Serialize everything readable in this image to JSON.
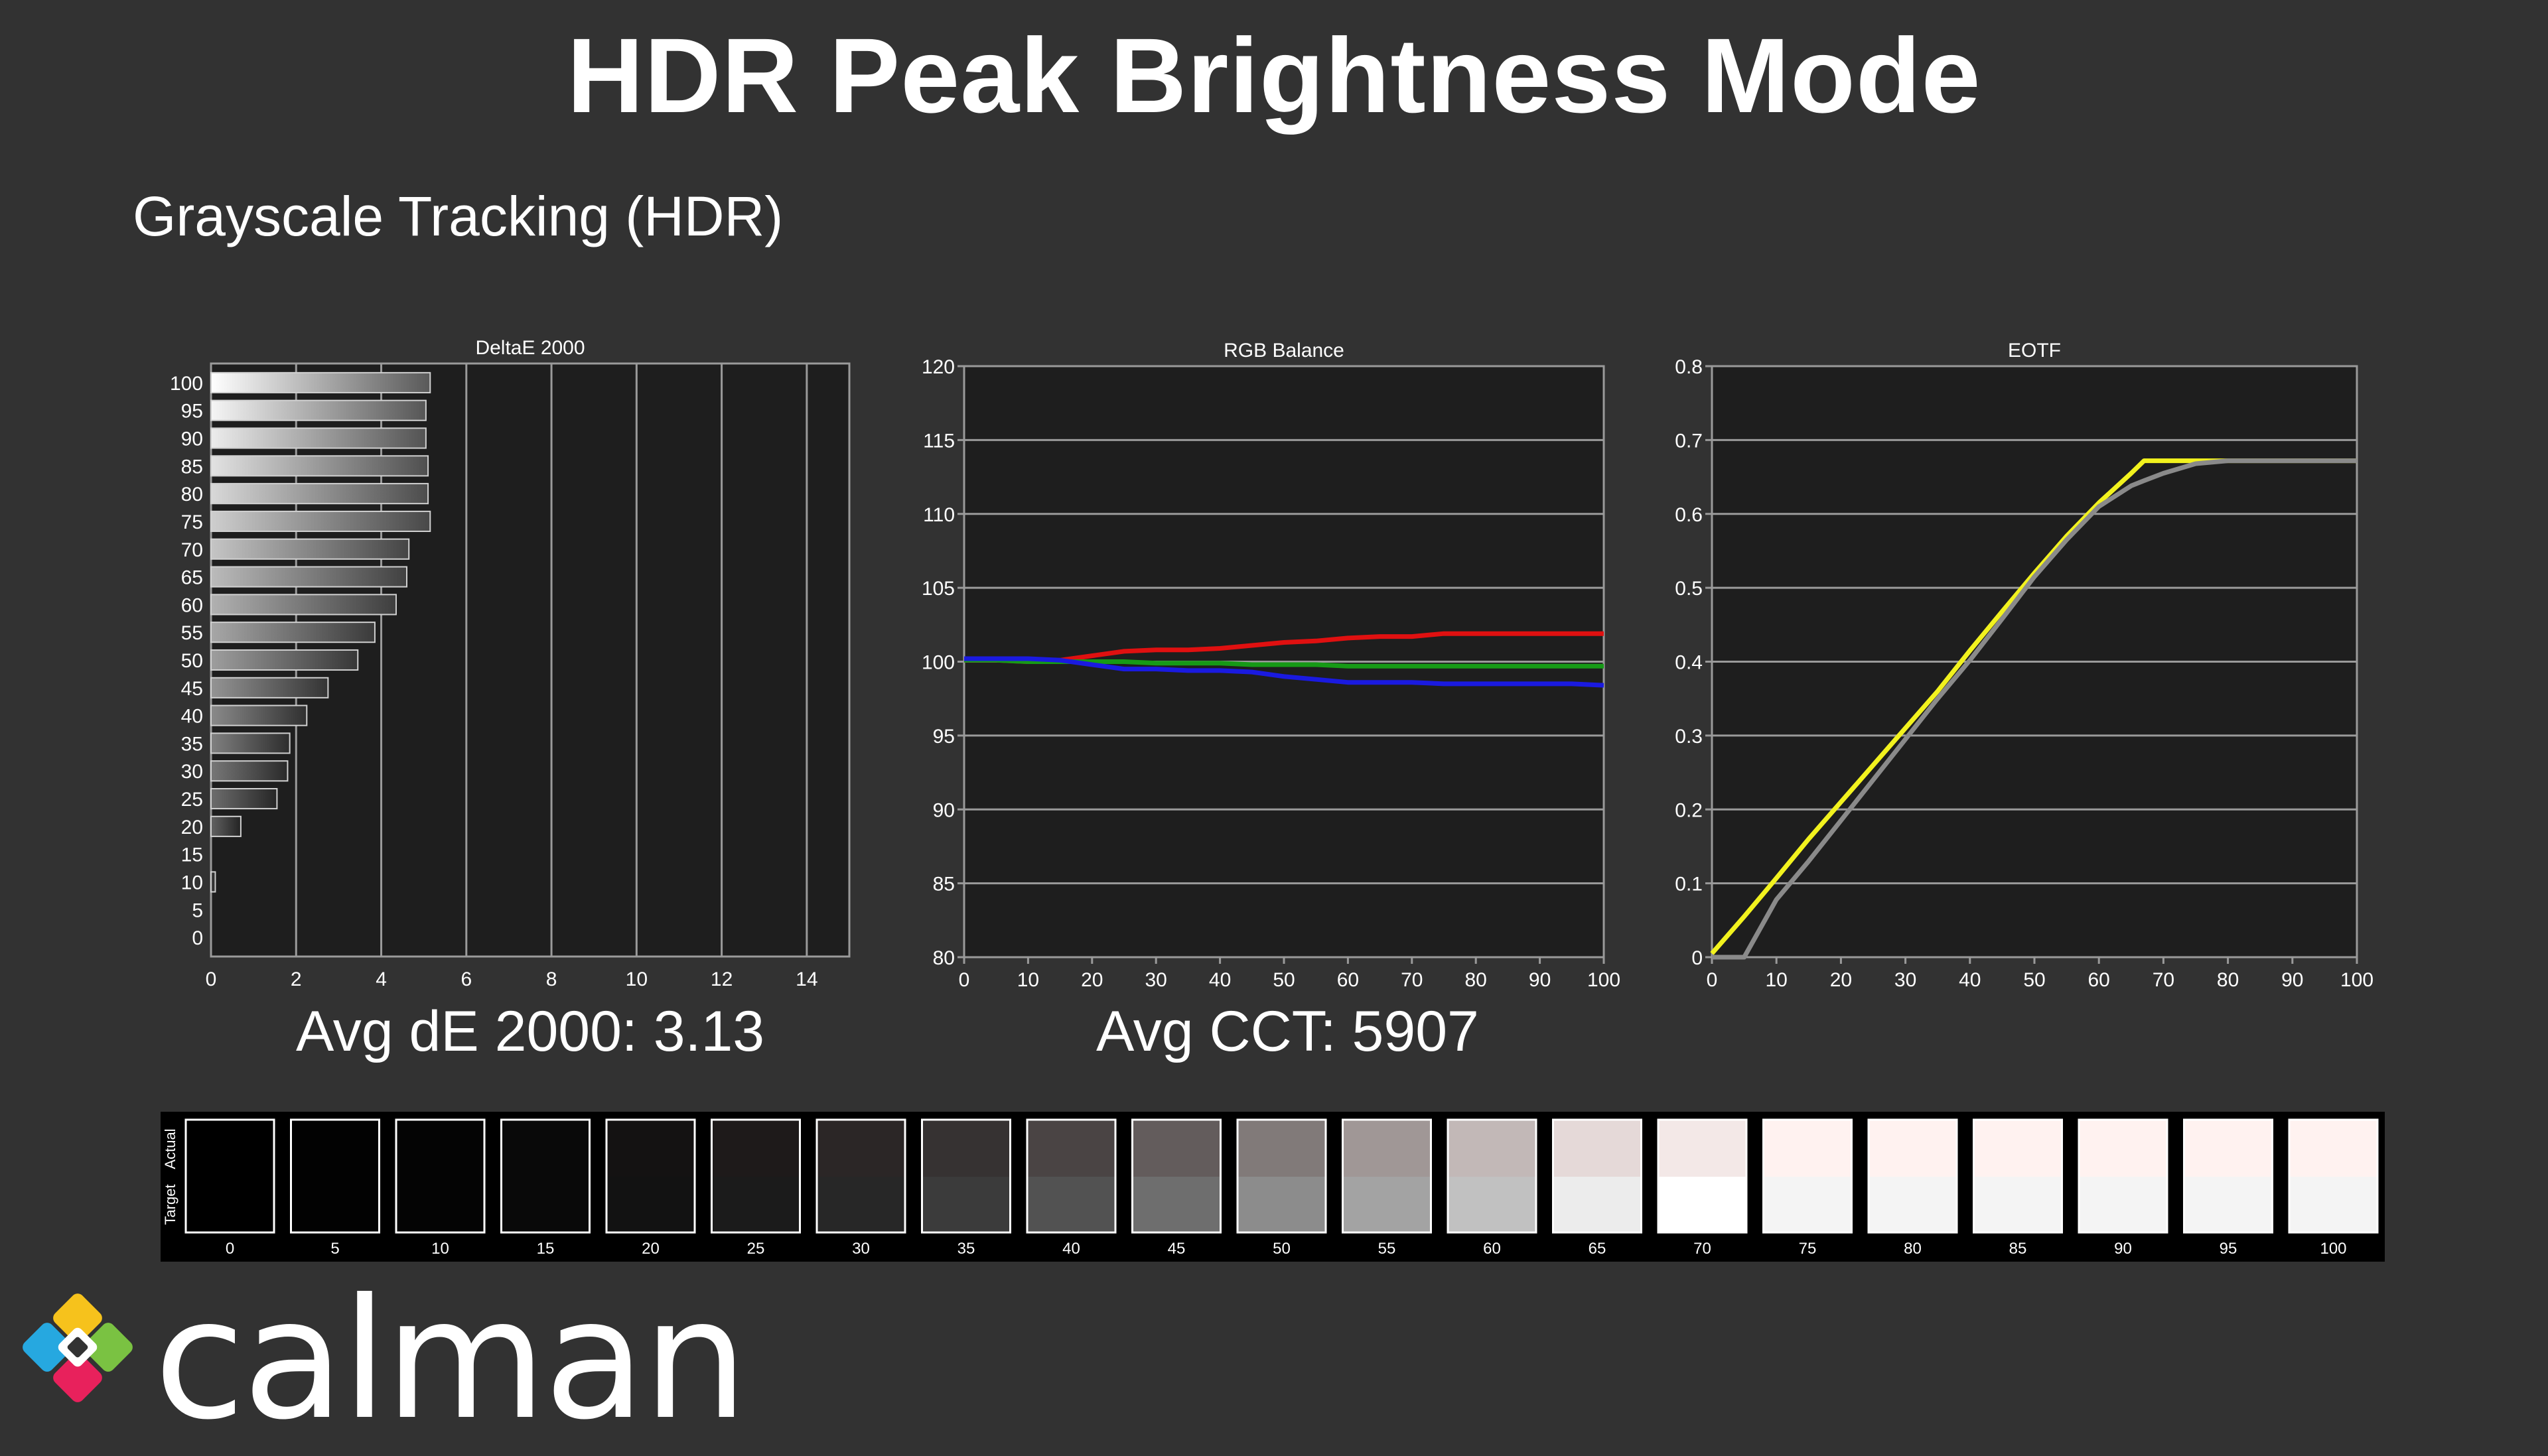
{
  "page": {
    "title": "HDR Peak Brightness Mode",
    "subtitle": "Grayscale Tracking (HDR)",
    "avg_de": "Avg dE 2000: 3.13",
    "avg_cct": "Avg CCT: 5907",
    "logo_text": "calman"
  },
  "colors": {
    "background": "#323232",
    "plot_background": "#1e1e1e",
    "grid": "#9a9a9a",
    "red_series": "#e01010",
    "green_series": "#169a16",
    "blue_series": "#1a1ae0",
    "eotf_measured": "#f2f21e",
    "eotf_target": "#8a8a8a"
  },
  "chart_data": [
    {
      "type": "bar",
      "orientation": "horizontal",
      "title": "DeltaE 2000",
      "categories": [
        "0",
        "5",
        "10",
        "15",
        "20",
        "25",
        "30",
        "35",
        "40",
        "45",
        "50",
        "55",
        "60",
        "65",
        "70",
        "75",
        "80",
        "85",
        "90",
        "95",
        "100"
      ],
      "values": [
        0,
        0,
        0.1,
        0,
        0.7,
        1.55,
        1.8,
        1.85,
        2.25,
        2.75,
        3.45,
        3.85,
        4.35,
        4.6,
        4.65,
        5.15,
        5.1,
        5.1,
        5.05,
        5.05,
        5.15
      ],
      "xlim": [
        0,
        15
      ],
      "xticks": [
        0,
        2,
        4,
        6,
        8,
        10,
        12,
        14
      ],
      "xlabel": "",
      "ylabel": "",
      "grid": true
    },
    {
      "type": "line",
      "title": "RGB Balance",
      "x": [
        0,
        5,
        10,
        15,
        20,
        25,
        30,
        35,
        40,
        45,
        50,
        55,
        60,
        65,
        70,
        75,
        80,
        85,
        90,
        95,
        100
      ],
      "series": [
        {
          "color": "red",
          "values": [
            100.1,
            100.1,
            100.0,
            100.1,
            100.4,
            100.7,
            100.8,
            100.8,
            100.9,
            101.1,
            101.3,
            101.4,
            101.6,
            101.7,
            101.7,
            101.9,
            101.9,
            101.9,
            101.9,
            101.9,
            101.9
          ]
        },
        {
          "color": "green",
          "values": [
            100.1,
            100.1,
            100.0,
            100.0,
            100.0,
            100.0,
            99.9,
            99.9,
            99.9,
            99.8,
            99.8,
            99.8,
            99.7,
            99.7,
            99.7,
            99.7,
            99.7,
            99.7,
            99.7,
            99.7,
            99.7
          ]
        },
        {
          "color": "blue",
          "values": [
            100.2,
            100.2,
            100.2,
            100.1,
            99.8,
            99.5,
            99.5,
            99.4,
            99.4,
            99.3,
            99.0,
            98.8,
            98.6,
            98.6,
            98.6,
            98.5,
            98.5,
            98.5,
            98.5,
            98.5,
            98.4
          ]
        }
      ],
      "ylim": [
        80,
        120
      ],
      "yticks": [
        80,
        85,
        90,
        95,
        100,
        105,
        110,
        115,
        120
      ],
      "xticks": [
        0,
        10,
        20,
        30,
        40,
        50,
        60,
        70,
        80,
        90,
        100
      ],
      "xlim": [
        0,
        100
      ],
      "xlabel": "",
      "ylabel": "",
      "grid": true
    },
    {
      "type": "line",
      "title": "EOTF",
      "x": [
        0,
        2,
        5,
        10,
        15,
        20,
        25,
        30,
        35,
        40,
        45,
        50,
        55,
        60,
        65,
        67,
        70,
        75,
        80,
        85,
        90,
        95,
        100
      ],
      "series": [
        {
          "color": "yellow",
          "values": [
            0.005,
            0.025,
            0.055,
            0.107,
            0.16,
            0.21,
            0.26,
            0.31,
            0.36,
            0.415,
            0.468,
            0.52,
            0.57,
            0.615,
            0.655,
            0.672,
            0.672,
            0.672,
            0.672,
            0.672,
            0.672,
            0.672,
            0.672
          ]
        },
        {
          "color": "gray",
          "values": [
            0,
            0,
            0,
            0.078,
            0.13,
            0.185,
            0.24,
            0.295,
            0.35,
            0.402,
            0.458,
            0.515,
            0.565,
            0.61,
            0.638,
            0.645,
            0.655,
            0.668,
            0.672,
            0.672,
            0.672,
            0.672,
            0.672
          ]
        }
      ],
      "ylim": [
        0,
        0.8
      ],
      "yticks": [
        0,
        0.1,
        0.2,
        0.3,
        0.4,
        0.5,
        0.6,
        0.7,
        0.8
      ],
      "xticks": [
        0,
        10,
        20,
        30,
        40,
        50,
        60,
        70,
        80,
        90,
        100
      ],
      "xlim": [
        0,
        100
      ],
      "xlabel": "",
      "ylabel": "",
      "grid": true
    }
  ],
  "swatches": {
    "row_labels": [
      "Actual",
      "Target"
    ],
    "items": [
      {
        "label": "0",
        "actual": "#000000",
        "target": "#000000"
      },
      {
        "label": "5",
        "actual": "#020202",
        "target": "#020202"
      },
      {
        "label": "10",
        "actual": "#040404",
        "target": "#040404"
      },
      {
        "label": "15",
        "actual": "#090909",
        "target": "#090909"
      },
      {
        "label": "20",
        "actual": "#141212",
        "target": "#121212"
      },
      {
        "label": "25",
        "actual": "#1e1a1a",
        "target": "#1b1b1b"
      },
      {
        "label": "30",
        "actual": "#2b2626",
        "target": "#272727"
      },
      {
        "label": "35",
        "actual": "#363232",
        "target": "#3b3b3b"
      },
      {
        "label": "40",
        "actual": "#4a4444",
        "target": "#525252"
      },
      {
        "label": "45",
        "actual": "#635c5c",
        "target": "#6e6e6e"
      },
      {
        "label": "50",
        "actual": "#817a79",
        "target": "#8c8c8c"
      },
      {
        "label": "55",
        "actual": "#a09796",
        "target": "#a3a3a3"
      },
      {
        "label": "60",
        "actual": "#c2b8b7",
        "target": "#c1c1c1"
      },
      {
        "label": "65",
        "actual": "#e5d9d8",
        "target": "#ececec"
      },
      {
        "label": "70",
        "actual": "#f3e8e7",
        "target": "#ffffff"
      },
      {
        "label": "75",
        "actual": "#fff2f0",
        "target": "#f4f4f4"
      },
      {
        "label": "80",
        "actual": "#fff2f0",
        "target": "#f4f4f4"
      },
      {
        "label": "85",
        "actual": "#fff2f0",
        "target": "#f4f4f4"
      },
      {
        "label": "90",
        "actual": "#fff2f0",
        "target": "#f4f4f4"
      },
      {
        "label": "95",
        "actual": "#fff2f0",
        "target": "#f4f4f4"
      },
      {
        "label": "100",
        "actual": "#fff2f0",
        "target": "#f4f4f4"
      }
    ]
  }
}
